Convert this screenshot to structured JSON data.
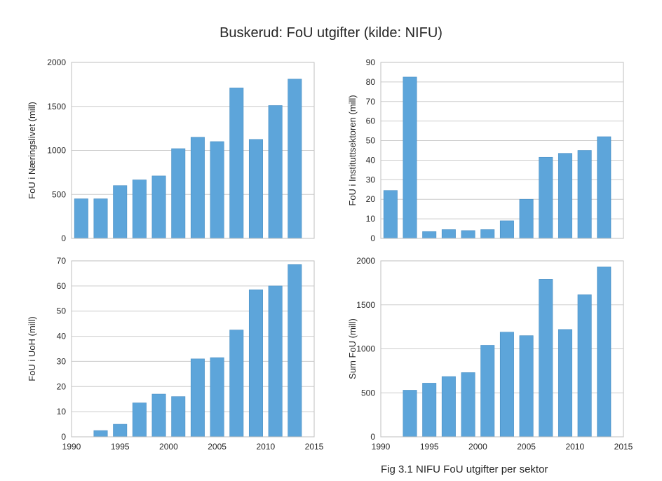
{
  "figure": {
    "title": "Buskerud: FoU utgifter (kilde: NIFU)",
    "caption": "Fig 3.1 NIFU FoU utgifter per sektor",
    "bar_color": "#5DA5DA",
    "bar_edge": "#4a8fc4",
    "grid_color": "#cccccc",
    "frame_color": "#bfbfbf"
  },
  "chart_data": [
    {
      "type": "bar",
      "ylabel": "FoU i Næringslivet (mill)",
      "x": [
        1991,
        1993,
        1995,
        1997,
        1999,
        2001,
        2003,
        2005,
        2007,
        2009,
        2011,
        2013
      ],
      "values": [
        450,
        450,
        600,
        665,
        710,
        1020,
        1150,
        1100,
        1710,
        1125,
        1510,
        1810
      ],
      "xlim": [
        1990,
        2015
      ],
      "ylim": [
        0,
        2000
      ],
      "yticks": [
        0,
        500,
        1000,
        1500,
        2000
      ],
      "xticks": [],
      "grid": true
    },
    {
      "type": "bar",
      "ylabel": "FoU i Instituttsektoren (mill)",
      "x": [
        1991,
        1993,
        1995,
        1997,
        1999,
        2001,
        2003,
        2005,
        2007,
        2009,
        2011,
        2013
      ],
      "values": [
        24.5,
        82.5,
        3.5,
        4.5,
        4,
        4.5,
        9,
        20,
        41.5,
        43.5,
        45,
        52
      ],
      "xlim": [
        1990,
        2015
      ],
      "ylim": [
        0,
        90
      ],
      "yticks": [
        0,
        10,
        20,
        30,
        40,
        50,
        60,
        70,
        80,
        90
      ],
      "xticks": [],
      "grid": true
    },
    {
      "type": "bar",
      "ylabel": "FoU i UoH (mill)",
      "x": [
        1991,
        1993,
        1995,
        1997,
        1999,
        2001,
        2003,
        2005,
        2007,
        2009,
        2011,
        2013
      ],
      "values": [
        0,
        2.5,
        5,
        13.5,
        17,
        16,
        31,
        31.5,
        42.5,
        58.5,
        60,
        68.5
      ],
      "xlim": [
        1990,
        2015
      ],
      "ylim": [
        0,
        70
      ],
      "yticks": [
        0,
        10,
        20,
        30,
        40,
        50,
        60,
        70
      ],
      "xticks": [
        1990,
        1995,
        2000,
        2005,
        2010,
        2015
      ],
      "grid": true
    },
    {
      "type": "bar",
      "ylabel": "Sum FoU (mill)",
      "x": [
        1993,
        1995,
        1997,
        1999,
        2001,
        2003,
        2005,
        2007,
        2009,
        2011,
        2013
      ],
      "values": [
        530,
        610,
        685,
        730,
        1040,
        1190,
        1150,
        1790,
        1220,
        1615,
        1930
      ],
      "xlim": [
        1990,
        2015
      ],
      "ylim": [
        0,
        2000
      ],
      "yticks": [
        0,
        500,
        1000,
        1500,
        2000
      ],
      "xticks": [
        1990,
        1995,
        2000,
        2005,
        2010,
        2015
      ],
      "grid": true
    }
  ]
}
